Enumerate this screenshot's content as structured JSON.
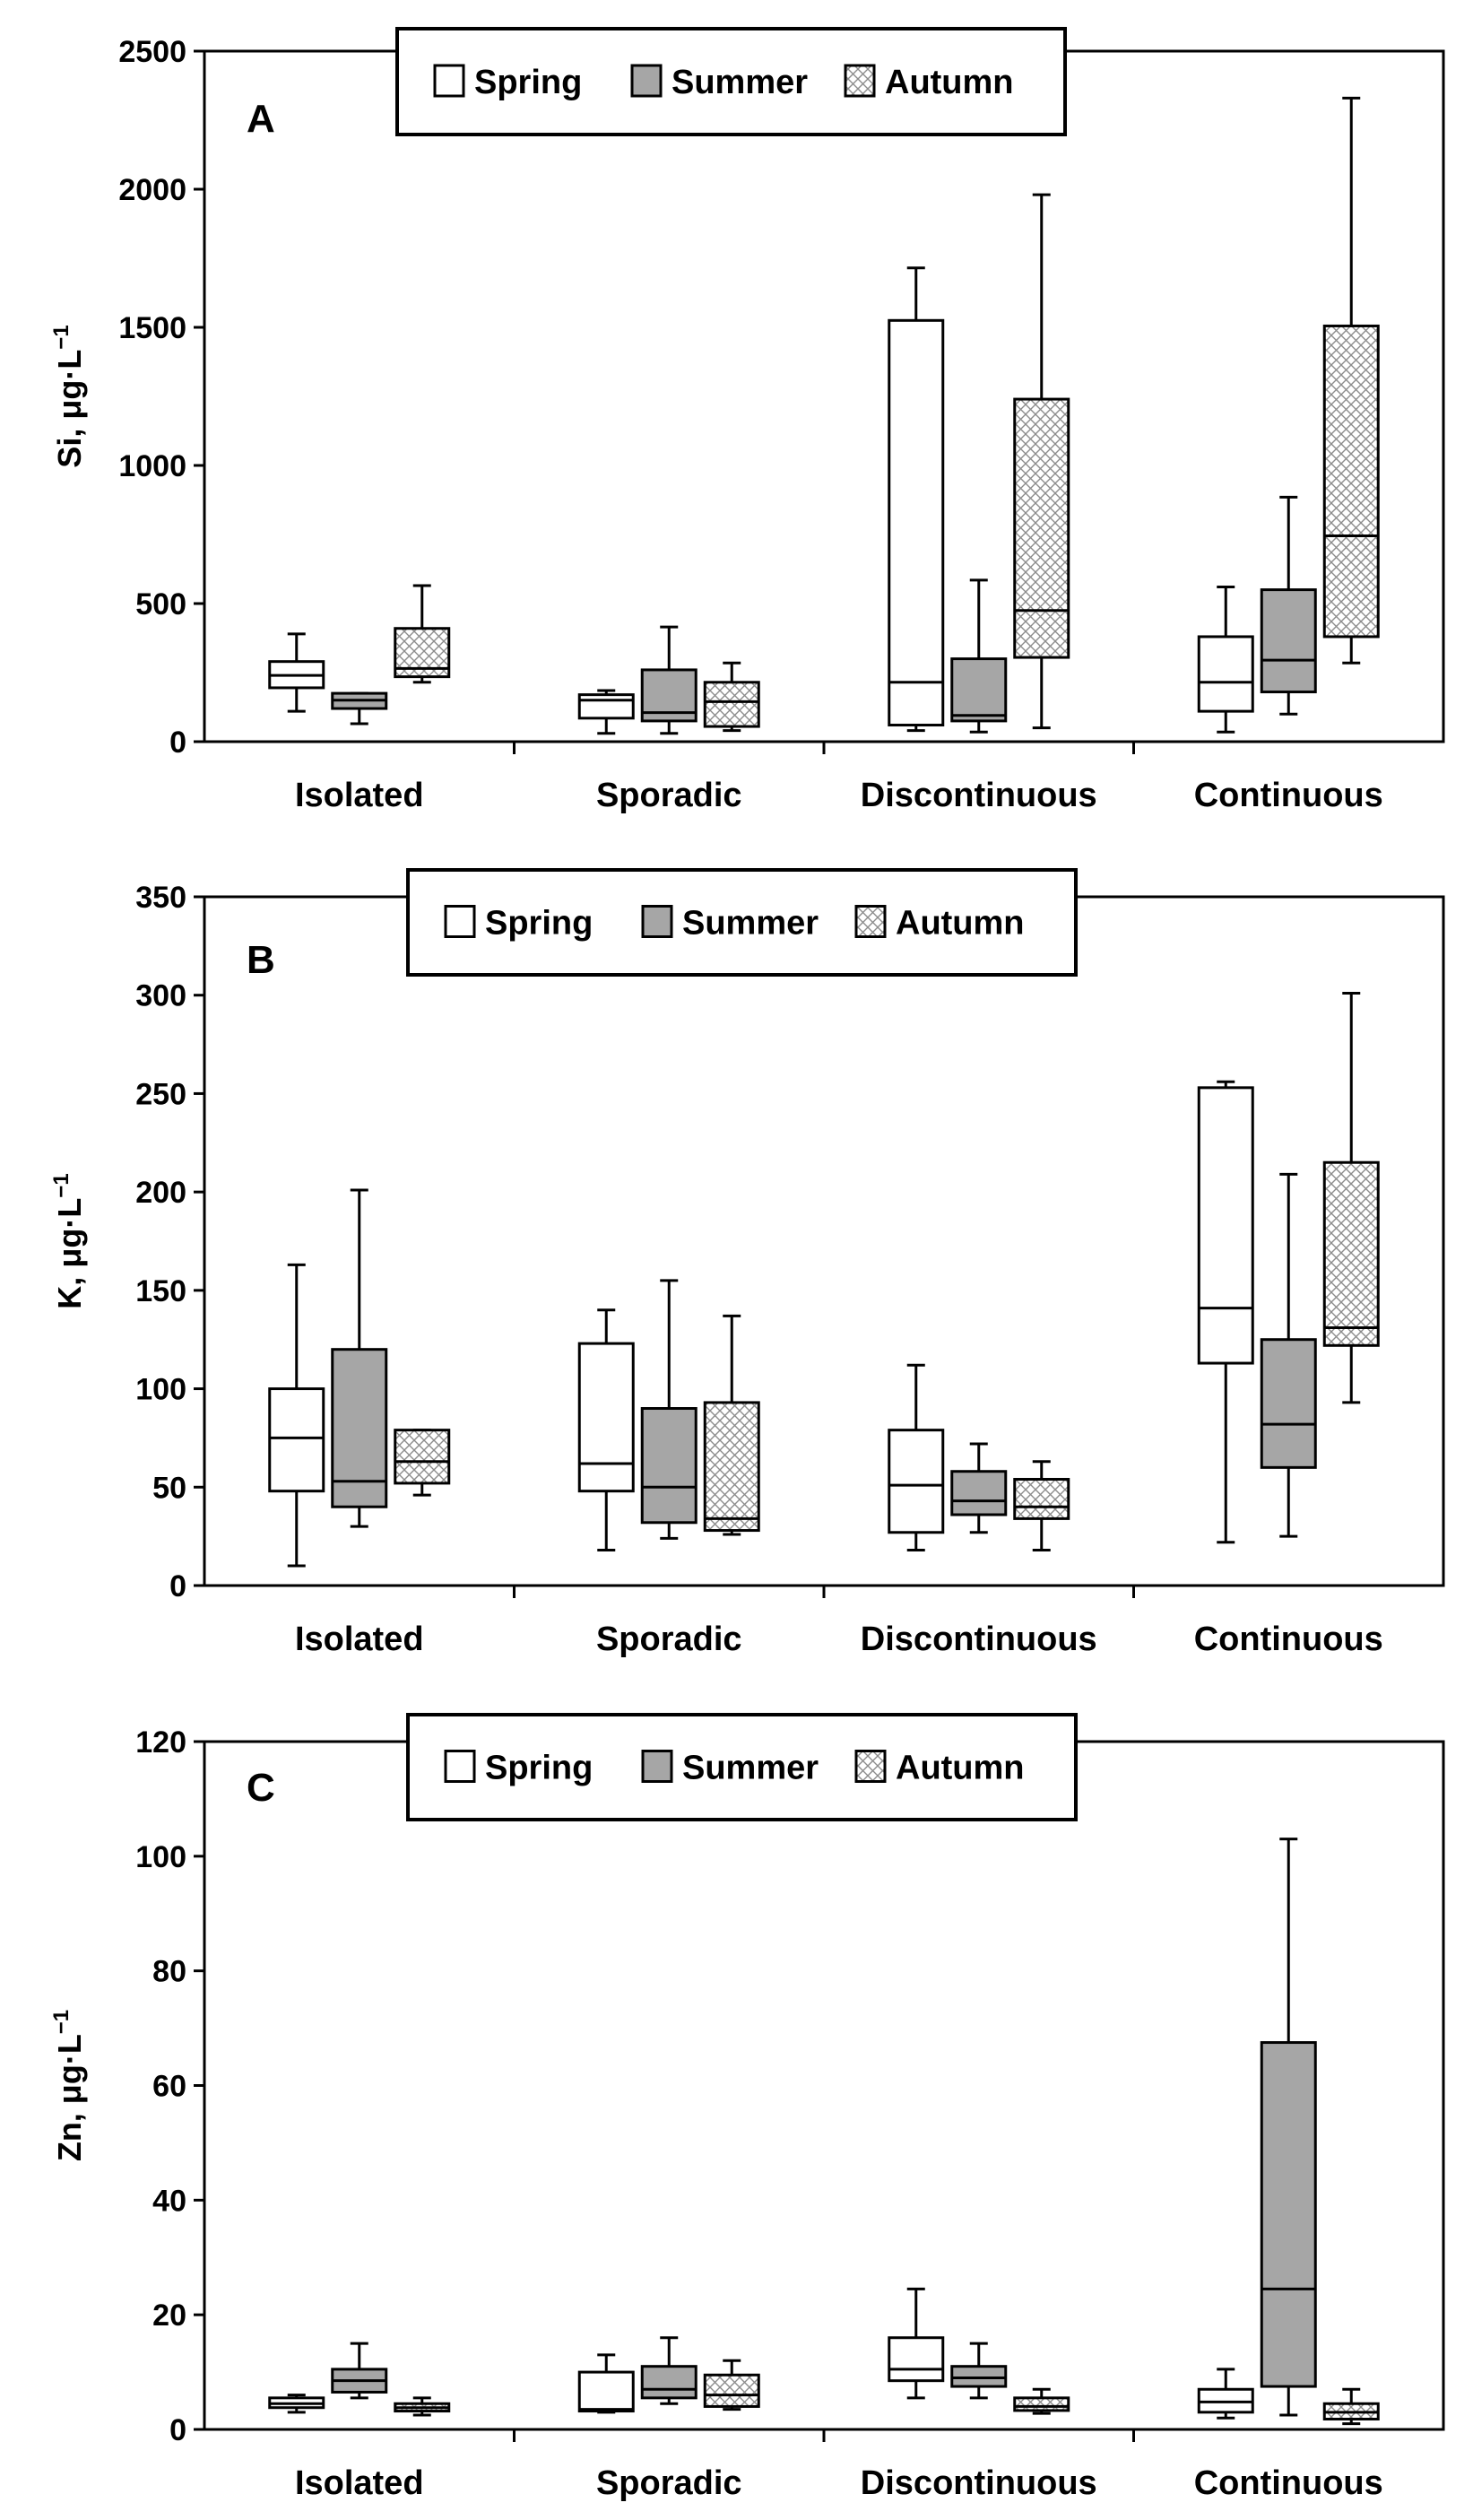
{
  "colors": {
    "spring": "#ffffff",
    "summer": "#a6a6a6",
    "autumn": "#ffffff",
    "hatch": "#8c8c8c",
    "line": "#000000"
  },
  "chart_data": [
    {
      "type": "boxplot",
      "panel_label": "A",
      "ylabel_main": "Si, μg·L",
      "ylabel_sup": "−1",
      "ylim": [
        0,
        2500
      ],
      "yticks": [
        "0",
        "500",
        "1000",
        "1500",
        "2000",
        "2500"
      ],
      "categories": [
        "Isolated",
        "Sporadic",
        "Discontinuous",
        "Continuous"
      ],
      "legend": [
        "Spring",
        "Summer",
        "Autumn"
      ],
      "series": [
        {
          "name": "Spring",
          "boxes": [
            {
              "min": 110,
              "q1": 195,
              "median": 240,
              "q3": 290,
              "max": 390
            },
            {
              "min": 30,
              "q1": 85,
              "median": 150,
              "q3": 170,
              "max": 185
            },
            {
              "min": 40,
              "q1": 60,
              "median": 215,
              "q3": 1525,
              "max": 1715
            },
            {
              "min": 35,
              "q1": 110,
              "median": 215,
              "q3": 380,
              "max": 560
            }
          ]
        },
        {
          "name": "Summer",
          "boxes": [
            {
              "min": 65,
              "q1": 120,
              "median": 150,
              "q3": 175,
              "max": 175
            },
            {
              "min": 30,
              "q1": 75,
              "median": 105,
              "q3": 260,
              "max": 415
            },
            {
              "min": 35,
              "q1": 75,
              "median": 95,
              "q3": 300,
              "max": 585
            },
            {
              "min": 100,
              "q1": 180,
              "median": 295,
              "q3": 550,
              "max": 885
            }
          ]
        },
        {
          "name": "Autumn",
          "boxes": [
            {
              "min": 215,
              "q1": 235,
              "median": 265,
              "q3": 410,
              "max": 565
            },
            {
              "min": 40,
              "q1": 55,
              "median": 145,
              "q3": 215,
              "max": 285
            },
            {
              "min": 50,
              "q1": 305,
              "median": 475,
              "q3": 1240,
              "max": 1980
            },
            {
              "min": 285,
              "q1": 380,
              "median": 745,
              "q3": 1505,
              "max": 2330
            }
          ]
        }
      ]
    },
    {
      "type": "boxplot",
      "panel_label": "B",
      "ylabel_main": "K, μg·L",
      "ylabel_sup": "−1",
      "ylim": [
        0,
        350
      ],
      "yticks": [
        "0",
        "50",
        "100",
        "150",
        "200",
        "250",
        "300",
        "350"
      ],
      "categories": [
        "Isolated",
        "Sporadic",
        "Discontinuous",
        "Continuous"
      ],
      "legend": [
        "Spring",
        "Summer",
        "Autumn"
      ],
      "series": [
        {
          "name": "Spring",
          "boxes": [
            {
              "min": 10,
              "q1": 48,
              "median": 75,
              "q3": 100,
              "max": 163
            },
            {
              "min": 18,
              "q1": 48,
              "median": 62,
              "q3": 123,
              "max": 140
            },
            {
              "min": 18,
              "q1": 27,
              "median": 51,
              "q3": 79,
              "max": 112
            },
            {
              "min": 22,
              "q1": 113,
              "median": 141,
              "q3": 253,
              "max": 256
            }
          ]
        },
        {
          "name": "Summer",
          "boxes": [
            {
              "min": 30,
              "q1": 40,
              "median": 53,
              "q3": 120,
              "max": 201
            },
            {
              "min": 24,
              "q1": 32,
              "median": 50,
              "q3": 90,
              "max": 155
            },
            {
              "min": 27,
              "q1": 36,
              "median": 43,
              "q3": 58,
              "max": 72
            },
            {
              "min": 25,
              "q1": 60,
              "median": 82,
              "q3": 125,
              "max": 209
            }
          ]
        },
        {
          "name": "Autumn",
          "boxes": [
            {
              "min": 46,
              "q1": 52,
              "median": 63,
              "q3": 79,
              "max": 79
            },
            {
              "min": 26,
              "q1": 28,
              "median": 34,
              "q3": 93,
              "max": 137
            },
            {
              "min": 18,
              "q1": 34,
              "median": 40,
              "q3": 54,
              "max": 63
            },
            {
              "min": 93,
              "q1": 122,
              "median": 131,
              "q3": 215,
              "max": 301
            }
          ]
        }
      ]
    },
    {
      "type": "boxplot",
      "panel_label": "C",
      "ylabel_main": "Zn, μg·L",
      "ylabel_sup": "−1",
      "ylim": [
        0,
        120
      ],
      "yticks": [
        "0",
        "20",
        "40",
        "60",
        "80",
        "100",
        "120"
      ],
      "categories": [
        "Isolated",
        "Sporadic",
        "Discontinuous",
        "Continuous"
      ],
      "legend": [
        "Spring",
        "Summer",
        "Autumn"
      ],
      "series": [
        {
          "name": "Spring",
          "boxes": [
            {
              "min": 3,
              "q1": 3.8,
              "median": 4.5,
              "q3": 5.5,
              "max": 6
            },
            {
              "min": 3,
              "q1": 3.2,
              "median": 3.5,
              "q3": 10,
              "max": 13
            },
            {
              "min": 5.5,
              "q1": 8.5,
              "median": 10.5,
              "q3": 16,
              "max": 24.5
            },
            {
              "min": 2,
              "q1": 3,
              "median": 4.8,
              "q3": 7,
              "max": 10.5
            }
          ]
        },
        {
          "name": "Summer",
          "boxes": [
            {
              "min": 5.5,
              "q1": 6.5,
              "median": 8.5,
              "q3": 10.5,
              "max": 15
            },
            {
              "min": 4.5,
              "q1": 5.5,
              "median": 7,
              "q3": 11,
              "max": 16
            },
            {
              "min": 5.5,
              "q1": 7.5,
              "median": 9,
              "q3": 11,
              "max": 15
            },
            {
              "min": 2.5,
              "q1": 7.5,
              "median": 24.5,
              "q3": 67.5,
              "max": 103
            }
          ]
        },
        {
          "name": "Autumn",
          "boxes": [
            {
              "min": 2.5,
              "q1": 3.2,
              "median": 3.8,
              "q3": 4.5,
              "max": 5.5
            },
            {
              "min": 3.5,
              "q1": 4,
              "median": 6,
              "q3": 9.5,
              "max": 12
            },
            {
              "min": 2.8,
              "q1": 3.3,
              "median": 4,
              "q3": 5.5,
              "max": 7
            },
            {
              "min": 1,
              "q1": 1.8,
              "median": 3,
              "q3": 4.5,
              "max": 7
            }
          ]
        }
      ]
    }
  ]
}
